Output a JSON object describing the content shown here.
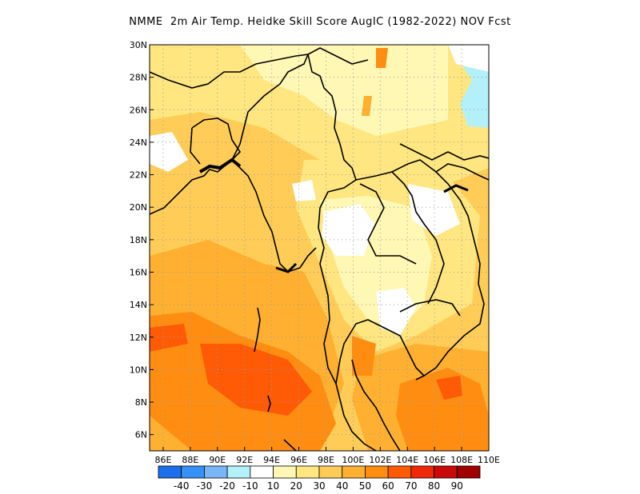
{
  "title": "NMME  2m Air Temp. Heidke Skill Score AugIC (1982-2022) NOV Fcst",
  "map": {
    "lon_range": [
      85,
      110
    ],
    "lat_range": [
      5,
      30
    ],
    "x_ticks": [
      "86E",
      "88E",
      "90E",
      "92E",
      "94E",
      "96E",
      "98E",
      "100E",
      "102E",
      "104E",
      "106E",
      "108E",
      "110E"
    ],
    "x_tick_values": [
      86,
      88,
      90,
      92,
      94,
      96,
      98,
      100,
      102,
      104,
      106,
      108,
      110
    ],
    "y_ticks": [
      "6N",
      "8N",
      "10N",
      "12N",
      "14N",
      "16N",
      "18N",
      "20N",
      "22N",
      "24N",
      "26N",
      "28N",
      "30N"
    ],
    "y_tick_values": [
      6,
      8,
      10,
      12,
      14,
      16,
      18,
      20,
      22,
      24,
      26,
      28,
      30
    ],
    "grid": true,
    "regions": [
      {
        "name": "base",
        "score": 30
      },
      {
        "name": "bay-of-bengal-warm",
        "score": 40
      },
      {
        "name": "andaman-sea",
        "score": 50
      },
      {
        "name": "southern-bay-max",
        "score": 60
      },
      {
        "name": "gulf-of-thailand",
        "score": 50
      },
      {
        "name": "thailand-low",
        "score": 10
      },
      {
        "name": "laos-central",
        "score": 20
      },
      {
        "name": "nw-india",
        "score": 20
      },
      {
        "name": "china-ne",
        "score": -10
      }
    ]
  },
  "colorbar": {
    "colors": [
      "#1e6eea",
      "#3a91f5",
      "#7ab6f7",
      "#b4f0fa",
      "#ffffff",
      "#fff7b4",
      "#ffe680",
      "#ffcd57",
      "#ffb030",
      "#ff8d12",
      "#ff5a05",
      "#f0280a",
      "#c80a0a",
      "#a00000"
    ],
    "labels": [
      "-40",
      "-30",
      "-20",
      "-10",
      "10",
      "20",
      "30",
      "40",
      "50",
      "60",
      "70",
      "80",
      "90"
    ]
  }
}
